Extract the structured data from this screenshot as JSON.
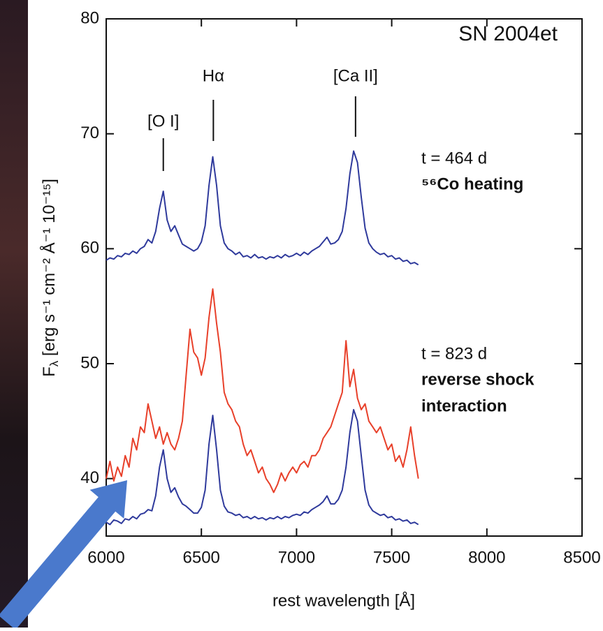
{
  "chart_data": {
    "type": "line",
    "title": "SN 2004et",
    "xlabel": "rest wavelength [Å]",
    "ylabel": {
      "symbol": "F",
      "sub": "λ",
      "unit": " [erg s⁻¹ cm⁻² Å⁻¹ 10⁻¹⁵]"
    },
    "xlim": [
      6000,
      8500
    ],
    "ylim": [
      35,
      80
    ],
    "xticks": [
      6000,
      6500,
      7000,
      7500,
      8000,
      8500
    ],
    "yticks": [
      40,
      50,
      60,
      70,
      80
    ],
    "grid": false,
    "annotations": [
      {
        "text": "[O I]",
        "x": 6300
      },
      {
        "text": "Hα",
        "x": 6563
      },
      {
        "text": "[Ca II]",
        "x": 7310
      }
    ],
    "x": [
      6000,
      6020,
      6040,
      6060,
      6080,
      6100,
      6120,
      6140,
      6160,
      6180,
      6200,
      6220,
      6240,
      6260,
      6280,
      6300,
      6320,
      6340,
      6360,
      6380,
      6400,
      6420,
      6440,
      6460,
      6480,
      6500,
      6520,
      6540,
      6560,
      6580,
      6600,
      6620,
      6640,
      6660,
      6680,
      6700,
      6720,
      6740,
      6760,
      6780,
      6800,
      6820,
      6840,
      6860,
      6880,
      6900,
      6920,
      6940,
      6960,
      6980,
      7000,
      7020,
      7040,
      7060,
      7080,
      7100,
      7120,
      7140,
      7160,
      7180,
      7200,
      7220,
      7240,
      7260,
      7280,
      7300,
      7320,
      7340,
      7360,
      7380,
      7400,
      7420,
      7440,
      7460,
      7480,
      7500,
      7520,
      7540,
      7560,
      7580,
      7600,
      7620,
      7640
    ],
    "series": [
      {
        "name": "t = 464 d",
        "labels": [
          "⁵⁶Co heating"
        ],
        "color": "#2f3a9c",
        "values": [
          59.0,
          59.2,
          59.1,
          59.4,
          59.3,
          59.6,
          59.5,
          59.8,
          59.6,
          60.0,
          60.2,
          60.8,
          60.5,
          61.5,
          63.5,
          65.0,
          62.5,
          61.5,
          62.0,
          61.2,
          60.4,
          60.2,
          60.0,
          59.8,
          60.0,
          60.6,
          62.0,
          65.5,
          68.0,
          65.5,
          62.0,
          60.5,
          60.0,
          59.8,
          59.5,
          59.7,
          59.3,
          59.4,
          59.2,
          59.5,
          59.2,
          59.3,
          59.1,
          59.3,
          59.2,
          59.4,
          59.2,
          59.5,
          59.3,
          59.4,
          59.6,
          59.4,
          59.7,
          59.5,
          59.8,
          60.0,
          60.2,
          60.6,
          61.0,
          60.4,
          60.5,
          60.8,
          61.5,
          63.5,
          66.5,
          68.5,
          67.5,
          64.5,
          61.8,
          60.5,
          60.0,
          59.7,
          59.5,
          59.6,
          59.3,
          59.4,
          59.1,
          59.2,
          58.9,
          59.0,
          58.7,
          58.8,
          58.6
        ]
      },
      {
        "color": "#2f3a9c",
        "values": [
          36.2,
          36.0,
          36.4,
          36.3,
          36.1,
          36.5,
          36.4,
          36.7,
          36.5,
          36.9,
          37.0,
          37.3,
          37.2,
          38.5,
          41.0,
          42.5,
          40.0,
          38.8,
          39.2,
          38.4,
          37.8,
          37.6,
          37.3,
          37.0,
          37.0,
          37.5,
          39.0,
          43.0,
          45.5,
          42.5,
          39.0,
          37.6,
          37.1,
          37.0,
          36.8,
          36.9,
          36.6,
          36.7,
          36.5,
          36.7,
          36.5,
          36.6,
          36.4,
          36.6,
          36.5,
          36.7,
          36.5,
          36.7,
          36.6,
          36.8,
          36.9,
          36.8,
          37.1,
          37.0,
          37.3,
          37.5,
          37.7,
          38.0,
          38.5,
          37.8,
          37.8,
          38.2,
          39.0,
          41.0,
          44.0,
          46.0,
          45.0,
          42.0,
          39.0,
          37.7,
          37.2,
          37.0,
          36.8,
          36.9,
          36.6,
          36.7,
          36.4,
          36.5,
          36.3,
          36.4,
          36.1,
          36.2,
          36.0
        ]
      },
      {
        "name": "t = 823 d",
        "labels": [
          "reverse shock",
          "interaction"
        ],
        "color": "#e8402a",
        "values": [
          40.0,
          41.5,
          39.8,
          41.0,
          40.2,
          42.0,
          41.0,
          43.5,
          42.5,
          44.5,
          44.0,
          46.5,
          45.0,
          43.5,
          44.5,
          43.0,
          44.0,
          43.0,
          42.5,
          43.5,
          45.0,
          49.0,
          53.0,
          51.0,
          50.5,
          49.0,
          50.5,
          54.0,
          56.5,
          53.5,
          51.0,
          47.5,
          46.5,
          46.0,
          45.0,
          44.5,
          43.0,
          42.0,
          42.5,
          41.5,
          40.5,
          41.0,
          40.0,
          39.5,
          38.8,
          39.5,
          40.5,
          39.8,
          40.5,
          41.0,
          40.5,
          41.2,
          41.5,
          41.0,
          42.0,
          42.0,
          42.5,
          43.5,
          44.0,
          44.5,
          45.5,
          46.5,
          47.5,
          52.0,
          48.0,
          49.5,
          47.0,
          46.0,
          46.5,
          45.0,
          44.5,
          44.0,
          44.5,
          43.5,
          42.5,
          43.0,
          41.5,
          42.0,
          41.0,
          42.5,
          44.5,
          42.0,
          40.0
        ]
      }
    ]
  }
}
